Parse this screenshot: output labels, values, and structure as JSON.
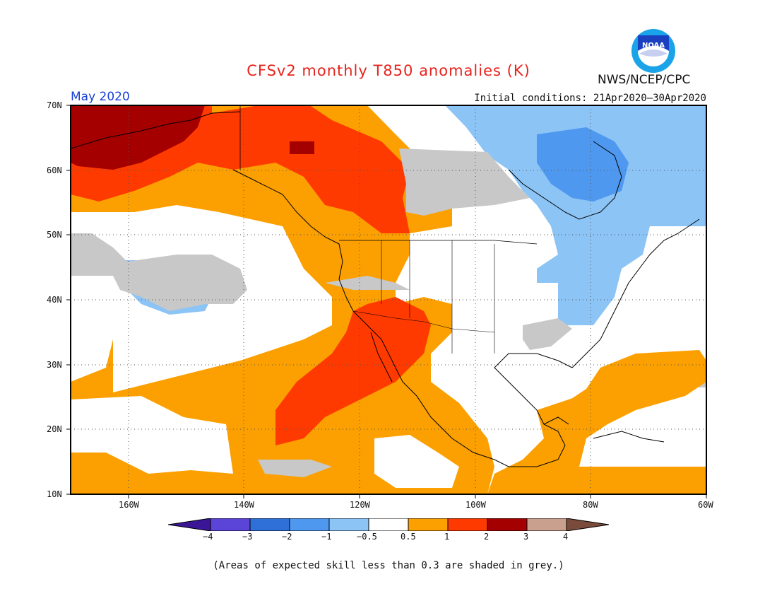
{
  "header": {
    "title": "CFSv2 monthly T850 anomalies (K)",
    "month": "May 2020",
    "initial_conditions": "Initial conditions: 21Apr2020–30Apr2020",
    "agency": "NWS/NCEP/CPC",
    "logo_text": "NOAA"
  },
  "map": {
    "projection": "lat-lon",
    "lon_range": [
      -170,
      -60
    ],
    "lat_range": [
      10,
      70
    ],
    "lat_labels": [
      "70N",
      "60N",
      "50N",
      "40N",
      "30N",
      "20N",
      "10N"
    ],
    "lon_labels": [
      "160W",
      "140W",
      "120W",
      "100W",
      "80W",
      "60W"
    ],
    "grid": "dotted",
    "regions": [
      {
        "name": "Alaska / Gulf of Alaska warm core",
        "category": "2 to 3"
      },
      {
        "name": "Western Canada warm",
        "category": "1 to 2"
      },
      {
        "name": "Southwest US / Baja warm",
        "category": "1 to 2"
      },
      {
        "name": "Eastern Canada / Hudson Bay cool",
        "category": "-1 to -0.5"
      },
      {
        "name": "Great Lakes / Northeast US cool",
        "category": "-1 to -0.5"
      },
      {
        "name": "Caribbean / W Atlantic warm",
        "category": "0.5 to 1"
      }
    ]
  },
  "colorbar": {
    "colors": [
      "#3a1696",
      "#5b44d8",
      "#2f6fd8",
      "#4f98f0",
      "#8cc4f6",
      "#ffffff",
      "#fba000",
      "#ff3a00",
      "#a50000",
      "#c9a08e",
      "#7a4a3a"
    ],
    "labels": [
      "−4",
      "−3",
      "−2",
      "−1",
      "−0.5",
      "0.5",
      "1",
      "2",
      "3",
      "4"
    ],
    "skill_grey": "#c8c8c8"
  },
  "caption": "(Areas of expected skill less than 0.3 are shaded in grey.)"
}
